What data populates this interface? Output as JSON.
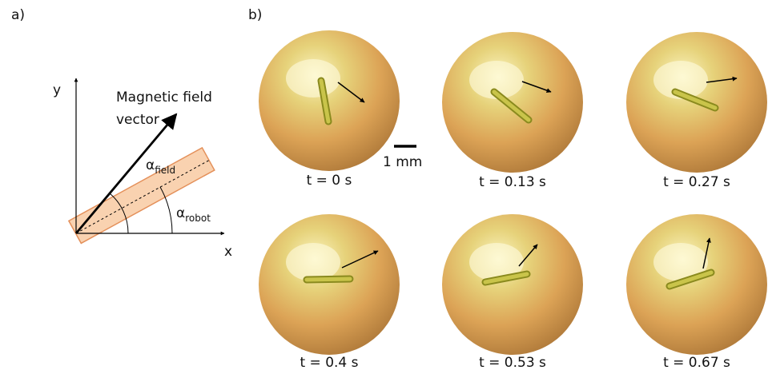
{
  "panel_a": {
    "label": "a)",
    "y_axis": "y",
    "x_axis": "x",
    "vector_label": [
      "Magnetic field",
      "vector"
    ],
    "alpha_field": {
      "symbol": "α",
      "subscript": "field"
    },
    "alpha_robot": {
      "symbol": "α",
      "subscript": "robot"
    }
  },
  "panel_b": {
    "label": "b)",
    "scale_bar": "1 mm",
    "frames": [
      "t = 0 s",
      "t = 0.13 s",
      "t = 0.27 s",
      "t = 0.4 s",
      "t = 0.53 s",
      "t = 0.67 s"
    ]
  }
}
